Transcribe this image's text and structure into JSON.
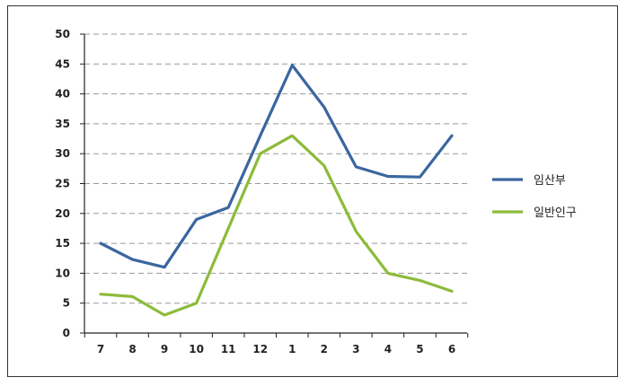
{
  "chart_data": {
    "type": "line",
    "title": "",
    "xlabel": "",
    "ylabel": "",
    "categories": [
      "7",
      "8",
      "9",
      "10",
      "11",
      "12",
      "1",
      "2",
      "3",
      "4",
      "5",
      "6"
    ],
    "ylim": [
      0,
      50
    ],
    "yticks": [
      0,
      5,
      10,
      15,
      20,
      25,
      30,
      35,
      40,
      45,
      50
    ],
    "grid": "horizontal dashed",
    "legend_position": "right",
    "series": [
      {
        "name": "임산부",
        "color": "#3a66a0",
        "values": [
          15,
          12.3,
          11,
          19,
          21,
          33,
          44.8,
          37.8,
          27.8,
          26.2,
          26.1,
          33
        ]
      },
      {
        "name": "일반인구",
        "color": "#8dbb3a",
        "values": [
          6.5,
          6.1,
          3,
          5,
          17.5,
          30,
          33,
          28,
          17,
          10,
          8.8,
          7
        ]
      }
    ]
  }
}
